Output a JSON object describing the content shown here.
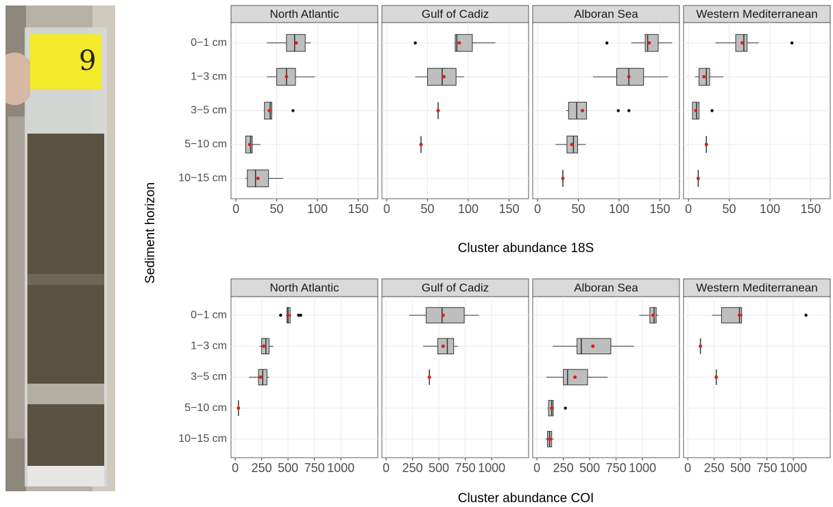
{
  "photo_label": "9",
  "y_label": "Sediment horizon",
  "chart_data": [
    {
      "type": "boxplot",
      "x_label": "Cluster abundance 18S",
      "categories": [
        "0−1 cm",
        "1−3 cm",
        "3−5 cm",
        "5−10 cm",
        "10−15 cm"
      ],
      "xlim": [
        -6,
        174
      ],
      "xticks": [
        0,
        50,
        100,
        150
      ],
      "grid": true,
      "box_color": "#bebebe",
      "mean_color": "#e41a1c",
      "facets": [
        {
          "title": "North Atlantic",
          "boxes": [
            {
              "min": 38,
              "q1": 62,
              "median": 72,
              "q3": 85,
              "max": 92,
              "mean": 74,
              "outliers": []
            },
            {
              "min": 38,
              "q1": 50,
              "median": 62,
              "q3": 73,
              "max": 97,
              "mean": 62,
              "outliers": []
            },
            {
              "min": 34,
              "q1": 35,
              "median": 42,
              "q3": 44,
              "max": 44,
              "mean": 41,
              "outliers": [
                70
              ]
            },
            {
              "min": 12,
              "q1": 12,
              "median": 18,
              "q3": 20,
              "max": 30,
              "mean": 17,
              "outliers": []
            },
            {
              "min": 12,
              "q1": 14,
              "median": 24,
              "q3": 40,
              "max": 58,
              "mean": 27,
              "outliers": []
            }
          ]
        },
        {
          "title": "Gulf of Cadiz",
          "boxes": [
            {
              "min": 83,
              "q1": 84,
              "median": 86,
              "q3": 105,
              "max": 133,
              "mean": 89,
              "outliers": [
                35
              ]
            },
            {
              "min": 35,
              "q1": 50,
              "median": 68,
              "q3": 85,
              "max": 95,
              "mean": 70,
              "outliers": []
            },
            {
              "min": 63,
              "q1": 63,
              "median": 63,
              "q3": 63,
              "max": 63,
              "mean": 63,
              "outliers": []
            },
            {
              "min": 42,
              "q1": 42,
              "median": 42,
              "q3": 42,
              "max": 42,
              "mean": 42,
              "outliers": []
            },
            null
          ]
        },
        {
          "title": "Alboran Sea",
          "boxes": [
            {
              "min": 115,
              "q1": 132,
              "median": 135,
              "q3": 148,
              "max": 165,
              "mean": 137,
              "outliers": [
                85
              ]
            },
            {
              "min": 68,
              "q1": 97,
              "median": 112,
              "q3": 130,
              "max": 160,
              "mean": 112,
              "outliers": []
            },
            {
              "min": 35,
              "q1": 38,
              "median": 48,
              "q3": 60,
              "max": 61,
              "mean": 55,
              "outliers": [
                99,
                112
              ]
            },
            {
              "min": 22,
              "q1": 36,
              "median": 44,
              "q3": 49,
              "max": 59,
              "mean": 42,
              "outliers": []
            },
            {
              "min": 31,
              "q1": 31,
              "median": 31,
              "q3": 31,
              "max": 31,
              "mean": 31,
              "outliers": []
            }
          ]
        },
        {
          "title": "Western Mediterranean",
          "boxes": [
            {
              "min": 33,
              "q1": 58,
              "median": 68,
              "q3": 72,
              "max": 86,
              "mean": 66,
              "outliers": [
                127
              ]
            },
            {
              "min": 8,
              "q1": 13,
              "median": 22,
              "q3": 26,
              "max": 43,
              "mean": 19,
              "outliers": []
            },
            {
              "min": 5,
              "q1": 5,
              "median": 10,
              "q3": 13,
              "max": 13,
              "mean": 9,
              "outliers": [
                29
              ]
            },
            {
              "min": 22,
              "q1": 22,
              "median": 22,
              "q3": 22,
              "max": 22,
              "mean": 22,
              "outliers": []
            },
            {
              "min": 12,
              "q1": 12,
              "median": 12,
              "q3": 12,
              "max": 12,
              "mean": 12,
              "outliers": []
            }
          ]
        }
      ]
    },
    {
      "type": "boxplot",
      "x_label": "Cluster abundance COI",
      "categories": [
        "0−1 cm",
        "1−3 cm",
        "3−5 cm",
        "5−10 cm",
        "10−15 cm"
      ],
      "xlim": [
        -40,
        1350
      ],
      "xticks": [
        0,
        250,
        500,
        750,
        1000
      ],
      "grid": true,
      "box_color": "#bebebe",
      "mean_color": "#e41a1c",
      "facets": [
        {
          "title": "North Atlantic",
          "boxes": [
            {
              "min": 480,
              "q1": 490,
              "median": 500,
              "q3": 520,
              "max": 530,
              "mean": 500,
              "outliers": [
                430,
                600,
                620
              ]
            },
            {
              "min": 230,
              "q1": 250,
              "median": 290,
              "q3": 320,
              "max": 360,
              "mean": 270,
              "outliers": []
            },
            {
              "min": 130,
              "q1": 220,
              "median": 260,
              "q3": 300,
              "max": 320,
              "mean": 240,
              "outliers": []
            },
            {
              "min": 30,
              "q1": 30,
              "median": 30,
              "q3": 30,
              "max": 30,
              "mean": 30,
              "outliers": []
            },
            null
          ]
        },
        {
          "title": "Gulf of Cadiz",
          "boxes": [
            {
              "min": 220,
              "q1": 380,
              "median": 530,
              "q3": 740,
              "max": 880,
              "mean": 540,
              "outliers": []
            },
            {
              "min": 350,
              "q1": 490,
              "median": 580,
              "q3": 640,
              "max": 680,
              "mean": 540,
              "outliers": []
            },
            {
              "min": 410,
              "q1": 410,
              "median": 410,
              "q3": 410,
              "max": 410,
              "mean": 410,
              "outliers": []
            },
            null,
            null
          ]
        },
        {
          "title": "Alboran Sea",
          "boxes": [
            {
              "min": 970,
              "q1": 1070,
              "median": 1110,
              "q3": 1130,
              "max": 1150,
              "mean": 1100,
              "outliers": []
            },
            {
              "min": 150,
              "q1": 380,
              "median": 420,
              "q3": 700,
              "max": 920,
              "mean": 530,
              "outliers": []
            },
            {
              "min": 90,
              "q1": 250,
              "median": 290,
              "q3": 480,
              "max": 670,
              "mean": 360,
              "outliers": []
            },
            {
              "min": 100,
              "q1": 110,
              "median": 140,
              "q3": 155,
              "max": 160,
              "mean": 140,
              "outliers": [
                270
              ]
            },
            {
              "min": 80,
              "q1": 100,
              "median": 120,
              "q3": 140,
              "max": 160,
              "mean": 120,
              "outliers": []
            }
          ]
        },
        {
          "title": "Western Mediterranean",
          "boxes": [
            {
              "min": 230,
              "q1": 320,
              "median": 490,
              "q3": 510,
              "max": 520,
              "mean": 490,
              "outliers": [
                1120
              ]
            },
            {
              "min": 120,
              "q1": 120,
              "median": 120,
              "q3": 120,
              "max": 120,
              "mean": 120,
              "outliers": []
            },
            {
              "min": 270,
              "q1": 270,
              "median": 270,
              "q3": 270,
              "max": 270,
              "mean": 270,
              "outliers": []
            },
            null,
            null
          ]
        }
      ]
    }
  ]
}
